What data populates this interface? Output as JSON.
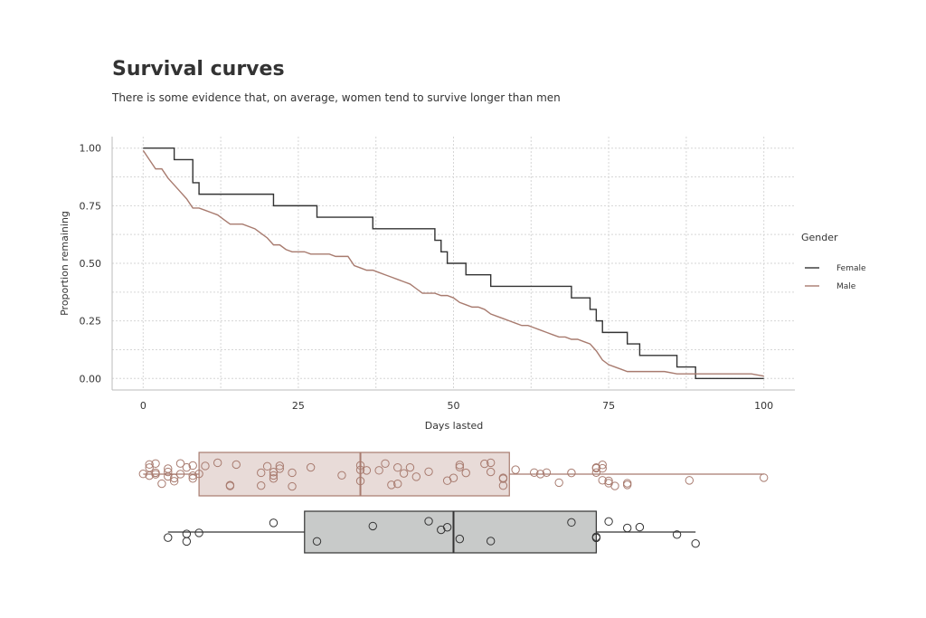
{
  "chart_data": {
    "type": "line",
    "title": "Survival curves",
    "subtitle": "There is some evidence that, on average, women tend to survive longer than men",
    "xlabel": "Days lasted",
    "ylabel": "Proportion remaining",
    "xlim": [
      -5,
      105
    ],
    "ylim": [
      -0.05,
      1.05
    ],
    "x_ticks": [
      0,
      25,
      50,
      75,
      100
    ],
    "x_tick_labels": [
      "0",
      "25",
      "50",
      "75",
      "100"
    ],
    "y_ticks": [
      0,
      0.25,
      0.5,
      0.75,
      1
    ],
    "y_tick_labels": [
      "0.00",
      "0.25",
      "0.50",
      "0.75",
      "1.00"
    ],
    "grid": true,
    "legend": {
      "title": "Gender",
      "placement": "right"
    },
    "colors": {
      "Female": "#333333",
      "Male": "#a87b6f",
      "male_box_fill": "#e8dbd8",
      "female_box_fill": "#c8cac9"
    },
    "series": [
      {
        "name": "Female",
        "step": true,
        "x": [
          0,
          4,
          5,
          6,
          8,
          9,
          20,
          21,
          27,
          28,
          36,
          37,
          46,
          47,
          48,
          49,
          50,
          52,
          53,
          56,
          57,
          68,
          69,
          71,
          72,
          73,
          74,
          75,
          77,
          78,
          79,
          80,
          85,
          86,
          88,
          89,
          100
        ],
        "y": [
          1.0,
          1.0,
          0.95,
          0.95,
          0.85,
          0.8,
          0.8,
          0.75,
          0.75,
          0.7,
          0.7,
          0.65,
          0.65,
          0.6,
          0.55,
          0.5,
          0.5,
          0.45,
          0.45,
          0.4,
          0.4,
          0.4,
          0.35,
          0.35,
          0.3,
          0.25,
          0.2,
          0.2,
          0.2,
          0.15,
          0.15,
          0.1,
          0.1,
          0.05,
          0.05,
          0.0,
          0.0
        ]
      },
      {
        "name": "Male",
        "step": false,
        "x": [
          0,
          1,
          2,
          3,
          4,
          5,
          6,
          7,
          8,
          9,
          10,
          11,
          12,
          13,
          14,
          15,
          16,
          18,
          19,
          20,
          21,
          22,
          23,
          24,
          25,
          26,
          27,
          28,
          29,
          30,
          31,
          32,
          33,
          34,
          35,
          36,
          37,
          38,
          39,
          40,
          41,
          42,
          43,
          44,
          45,
          46,
          47,
          48,
          49,
          50,
          51,
          52,
          53,
          54,
          55,
          56,
          57,
          58,
          59,
          60,
          61,
          62,
          63,
          64,
          65,
          66,
          67,
          68,
          69,
          70,
          71,
          72,
          73,
          74,
          75,
          76,
          77,
          78,
          79,
          80,
          82,
          84,
          86,
          88,
          90,
          92,
          94,
          96,
          98,
          100
        ],
        "y": [
          0.99,
          0.95,
          0.91,
          0.91,
          0.87,
          0.84,
          0.81,
          0.78,
          0.74,
          0.74,
          0.73,
          0.72,
          0.71,
          0.69,
          0.67,
          0.67,
          0.67,
          0.65,
          0.63,
          0.61,
          0.58,
          0.58,
          0.56,
          0.55,
          0.55,
          0.55,
          0.54,
          0.54,
          0.54,
          0.54,
          0.53,
          0.53,
          0.53,
          0.49,
          0.48,
          0.47,
          0.47,
          0.46,
          0.45,
          0.44,
          0.43,
          0.42,
          0.41,
          0.39,
          0.37,
          0.37,
          0.37,
          0.36,
          0.36,
          0.35,
          0.33,
          0.32,
          0.31,
          0.31,
          0.3,
          0.28,
          0.27,
          0.26,
          0.25,
          0.24,
          0.23,
          0.23,
          0.22,
          0.21,
          0.2,
          0.19,
          0.18,
          0.18,
          0.17,
          0.17,
          0.16,
          0.15,
          0.12,
          0.08,
          0.06,
          0.05,
          0.04,
          0.03,
          0.03,
          0.03,
          0.03,
          0.03,
          0.02,
          0.02,
          0.02,
          0.02,
          0.02,
          0.02,
          0.02,
          0.01
        ]
      }
    ],
    "boxplots": [
      {
        "name": "Male",
        "whisker_low": 0,
        "q1": 9,
        "median": 35,
        "q3": 59,
        "whisker_high": 100,
        "points": [
          0,
          1,
          1,
          1,
          2,
          2,
          2,
          3,
          4,
          4,
          4,
          5,
          5,
          6,
          6,
          7,
          8,
          8,
          8,
          9,
          10,
          12,
          14,
          14,
          15,
          19,
          19,
          20,
          21,
          21,
          21,
          22,
          22,
          24,
          24,
          27,
          32,
          35,
          35,
          35,
          36,
          38,
          39,
          40,
          41,
          41,
          42,
          43,
          44,
          46,
          49,
          50,
          51,
          51,
          52,
          55,
          56,
          56,
          58,
          58,
          58,
          60,
          63,
          64,
          65,
          67,
          69,
          73,
          73,
          73,
          74,
          74,
          74,
          75,
          75,
          76,
          78,
          78,
          88,
          100
        ]
      },
      {
        "name": "Female",
        "whisker_low": 4,
        "q1": 26,
        "median": 50,
        "q3": 73,
        "whisker_high": 89,
        "points": [
          4,
          7,
          7,
          9,
          21,
          28,
          37,
          46,
          48,
          49,
          51,
          56,
          69,
          73,
          73,
          75,
          78,
          80,
          86,
          89
        ]
      }
    ]
  }
}
